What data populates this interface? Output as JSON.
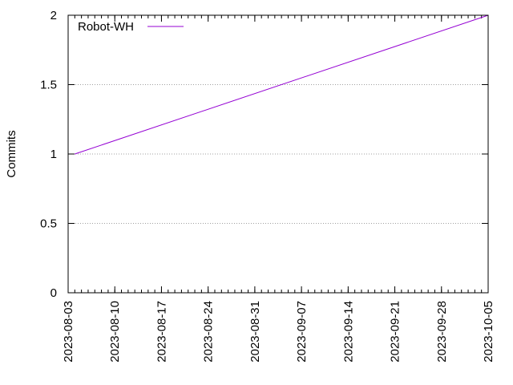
{
  "chart_data": {
    "type": "line",
    "ylabel": "Commits",
    "xlabel": "",
    "title": "",
    "xlim": [
      "2023-08-03",
      "2023-10-05"
    ],
    "ylim": [
      0,
      2
    ],
    "x_ticks": [
      "2023-08-03",
      "2023-08-10",
      "2023-08-17",
      "2023-08-24",
      "2023-08-31",
      "2023-09-07",
      "2023-09-14",
      "2023-09-21",
      "2023-09-28",
      "2023-10-05"
    ],
    "y_ticks": [
      "0",
      "0.5",
      "1",
      "1.5",
      "2"
    ],
    "grid": "horizontal dotted",
    "legend_position": "top-left",
    "series": [
      {
        "name": "Robot-WH",
        "color": "#9400d3",
        "x": [
          "2023-08-04",
          "2023-10-05"
        ],
        "y": [
          1,
          2
        ]
      }
    ]
  }
}
